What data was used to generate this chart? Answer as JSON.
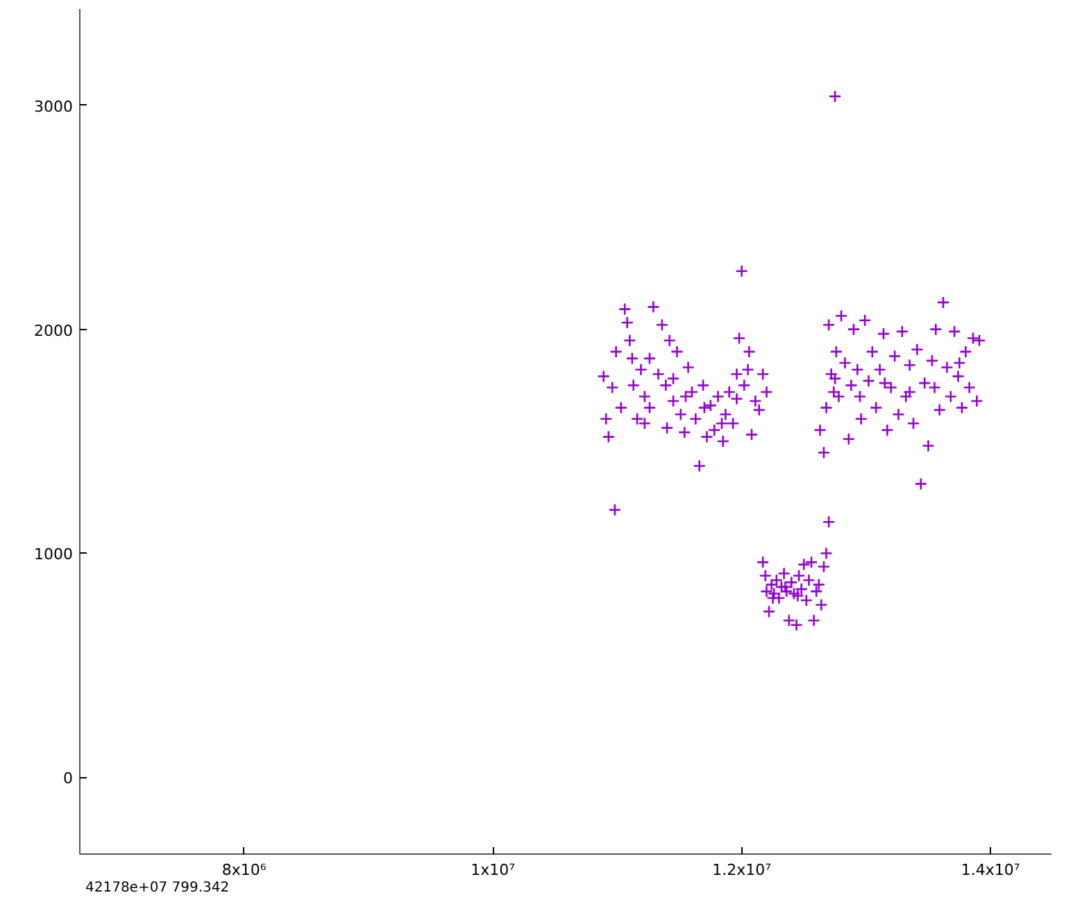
{
  "chart_data": {
    "type": "scatter",
    "marker": "cross",
    "grid": false,
    "xlim": [
      6680000.0,
      14490000.0
    ],
    "ylim": [
      -343,
      3430
    ],
    "xticks": [
      {
        "value": 8000000.0,
        "label": "8x10⁶"
      },
      {
        "value": 10000000.0,
        "label": "1x10⁷"
      },
      {
        "value": 12000000.0,
        "label": "1.2x10⁷"
      },
      {
        "value": 14000000.0,
        "label": "1.4x10⁷"
      }
    ],
    "yticks": [
      0,
      1000,
      2000,
      3000
    ],
    "annotations": [
      "42178e+07    799.342"
    ],
    "series": [
      {
        "color": "#9400d3",
        "x": [
          10980000.0,
          10890000.0,
          10910000.0,
          10930000.0,
          10960000.0,
          10990000.0,
          11030000.0,
          11060000.0,
          11080000.0,
          11100000.0,
          11130000.0,
          11160000.0,
          11190000.0,
          11220000.0,
          11260000.0,
          11290000.0,
          11330000.0,
          11360000.0,
          11390000.0,
          11420000.0,
          11450000.0,
          11480000.0,
          11510000.0,
          11540000.0,
          11570000.0,
          11600000.0,
          11630000.0,
          11660000.0,
          11690000.0,
          11720000.0,
          11750000.0,
          11780000.0,
          11810000.0,
          11840000.0,
          11870000.0,
          11900000.0,
          11930000.0,
          11960000.0,
          11980000.0,
          12000000.0,
          12020000.0,
          12050000.0,
          12080000.0,
          12110000.0,
          12140000.0,
          12170000.0,
          12200000.0,
          11260000.0,
          11400000.0,
          11550000.0,
          11700000.0,
          11850000.0,
          11120000.0,
          11220000.0,
          11450000.0,
          11960000.0,
          12060000.0,
          12170000.0,
          12190000.0,
          12200000.0,
          12220000.0,
          12240000.0,
          12260000.0,
          12280000.0,
          12300000.0,
          12320000.0,
          12340000.0,
          12360000.0,
          12380000.0,
          12400000.0,
          12420000.0,
          12440000.0,
          12460000.0,
          12480000.0,
          12500000.0,
          12520000.0,
          12540000.0,
          12560000.0,
          12580000.0,
          12600000.0,
          12620000.0,
          12640000.0,
          12660000.0,
          12680000.0,
          12700000.0,
          12250000.0,
          12350000.0,
          12450000.0,
          12630000.0,
          12660000.0,
          12680000.0,
          12700000.0,
          12720000.0,
          12740000.0,
          12760000.0,
          12780000.0,
          12800000.0,
          12830000.0,
          12860000.0,
          12880000.0,
          12900000.0,
          12930000.0,
          12960000.0,
          12990000.0,
          13020000.0,
          13050000.0,
          13080000.0,
          13110000.0,
          13140000.0,
          13170000.0,
          13200000.0,
          13230000.0,
          13260000.0,
          13290000.0,
          13320000.0,
          13350000.0,
          13380000.0,
          13410000.0,
          13440000.0,
          13470000.0,
          13500000.0,
          13530000.0,
          13560000.0,
          13590000.0,
          13620000.0,
          13650000.0,
          13680000.0,
          13710000.0,
          13740000.0,
          13770000.0,
          13800000.0,
          13830000.0,
          13860000.0,
          13890000.0,
          13910000.0,
          12750000.0,
          12950000.0,
          13150000.0,
          13350000.0,
          13550000.0,
          13750000.0,
          12750000.0
        ],
        "values": [
          1194,
          1790,
          1600,
          1520,
          1740,
          1900,
          1650,
          2090,
          2030,
          1950,
          1750,
          1600,
          1820,
          1700,
          1870,
          2100,
          1800,
          2020,
          1750,
          1950,
          1680,
          1900,
          1620,
          1540,
          1830,
          1720,
          1600,
          1390,
          1750,
          1520,
          1660,
          1550,
          1700,
          1580,
          1620,
          1720,
          1580,
          1800,
          1960,
          2260,
          1750,
          1820,
          1530,
          1680,
          1640,
          1800,
          1720,
          1650,
          1560,
          1700,
          1650,
          1500,
          1870,
          1580,
          1780,
          1690,
          1900,
          960,
          900,
          830,
          740,
          860,
          820,
          880,
          800,
          850,
          910,
          830,
          700,
          870,
          820,
          680,
          900,
          840,
          950,
          790,
          880,
          960,
          700,
          830,
          860,
          770,
          940,
          1000,
          1140,
          800,
          850,
          810,
          1550,
          1450,
          1650,
          2020,
          1800,
          1720,
          1900,
          1700,
          2060,
          1850,
          1510,
          1750,
          2000,
          1820,
          1600,
          2040,
          1770,
          1900,
          1650,
          1820,
          1980,
          1550,
          1740,
          1880,
          1620,
          1990,
          1700,
          1840,
          1580,
          1910,
          1310,
          1760,
          1480,
          1860,
          2000,
          1640,
          2120,
          1830,
          1700,
          1990,
          1790,
          1650,
          1900,
          1740,
          1960,
          1680,
          1950,
          1780,
          1700,
          1760,
          1720,
          1740,
          1850,
          3040
        ]
      }
    ]
  }
}
